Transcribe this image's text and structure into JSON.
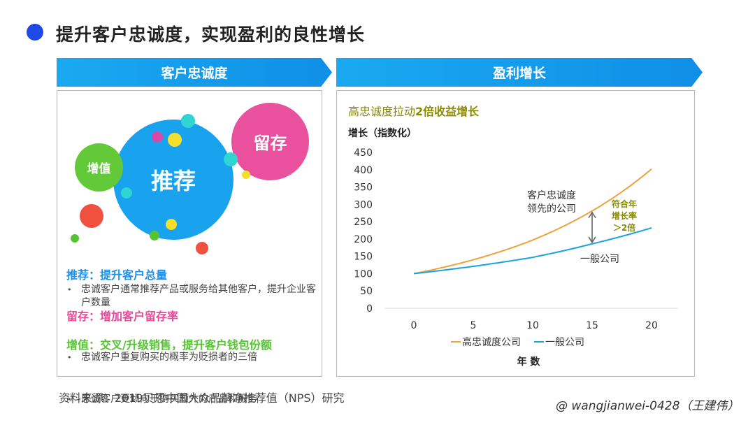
{
  "header": {
    "title": "提升客户忠诚度，实现盈利的良性增长"
  },
  "left_panel": {
    "banner": "客户忠诚度",
    "bubbles": {
      "recommend": "推荐",
      "retain": "留存",
      "value_add": "增值"
    },
    "sections": [
      {
        "heading": "推荐：提升客户总量",
        "bullet": "忠诚客户通常推荐产品或服务给其他客户，提升企业客户数量"
      },
      {
        "heading": "留存：增加客户留存率",
        "bullet": "忠诚客户重复购买的概率为贬损者的三倍"
      },
      {
        "heading": "增值：交叉/升级销售，提升客户钱包份额",
        "bullet": "忠诚客户更倾向于购买额外的产品和服务"
      }
    ],
    "bullet_symbol": "•"
  },
  "right_panel": {
    "banner": "盈利增长",
    "subtitle_prefix": "高忠诚度拉动",
    "subtitle_emph": "2倍收益增长"
  },
  "footer": {
    "source": "资料来源：2019贝恩中国大众品牌净推荐值（NPS）研究",
    "credit": "@ wangjianwei-0428（王建伟）"
  },
  "chart_data": {
    "type": "line",
    "title": "高忠诚度拉动2倍收益增长",
    "ylabel": "增长（指数化）",
    "xlabel": "年 数",
    "x": [
      0,
      5,
      10,
      15,
      20
    ],
    "ylim": [
      0,
      450
    ],
    "yticks": [
      0,
      50,
      100,
      150,
      200,
      250,
      300,
      350,
      400,
      450
    ],
    "xlim": [
      0,
      20
    ],
    "grid": false,
    "legend_position": "bottom",
    "series": [
      {
        "name": "高忠诚度公司",
        "color": "#f0a23a",
        "values": [
          100,
          140,
          197,
          281,
          402
        ]
      },
      {
        "name": "一般公司",
        "color": "#1aa3e0",
        "values": [
          100,
          121,
          147,
          186,
          232
        ]
      }
    ],
    "annotations": {
      "leader": "客户忠诚度领先的公司",
      "leader_line1": "客户忠诚度",
      "leader_line2": "领先的公司",
      "average": "一般公司",
      "growth_line1": "符合年",
      "growth_line2": "增长率",
      "growth_line3": "＞2倍"
    }
  },
  "colors": {
    "blue": "#1e90ea",
    "pink": "#e64a9a",
    "green": "#55c433",
    "orange": "#f0a23a",
    "cyan": "#1aa3e0",
    "olive": "#8a8a00"
  }
}
